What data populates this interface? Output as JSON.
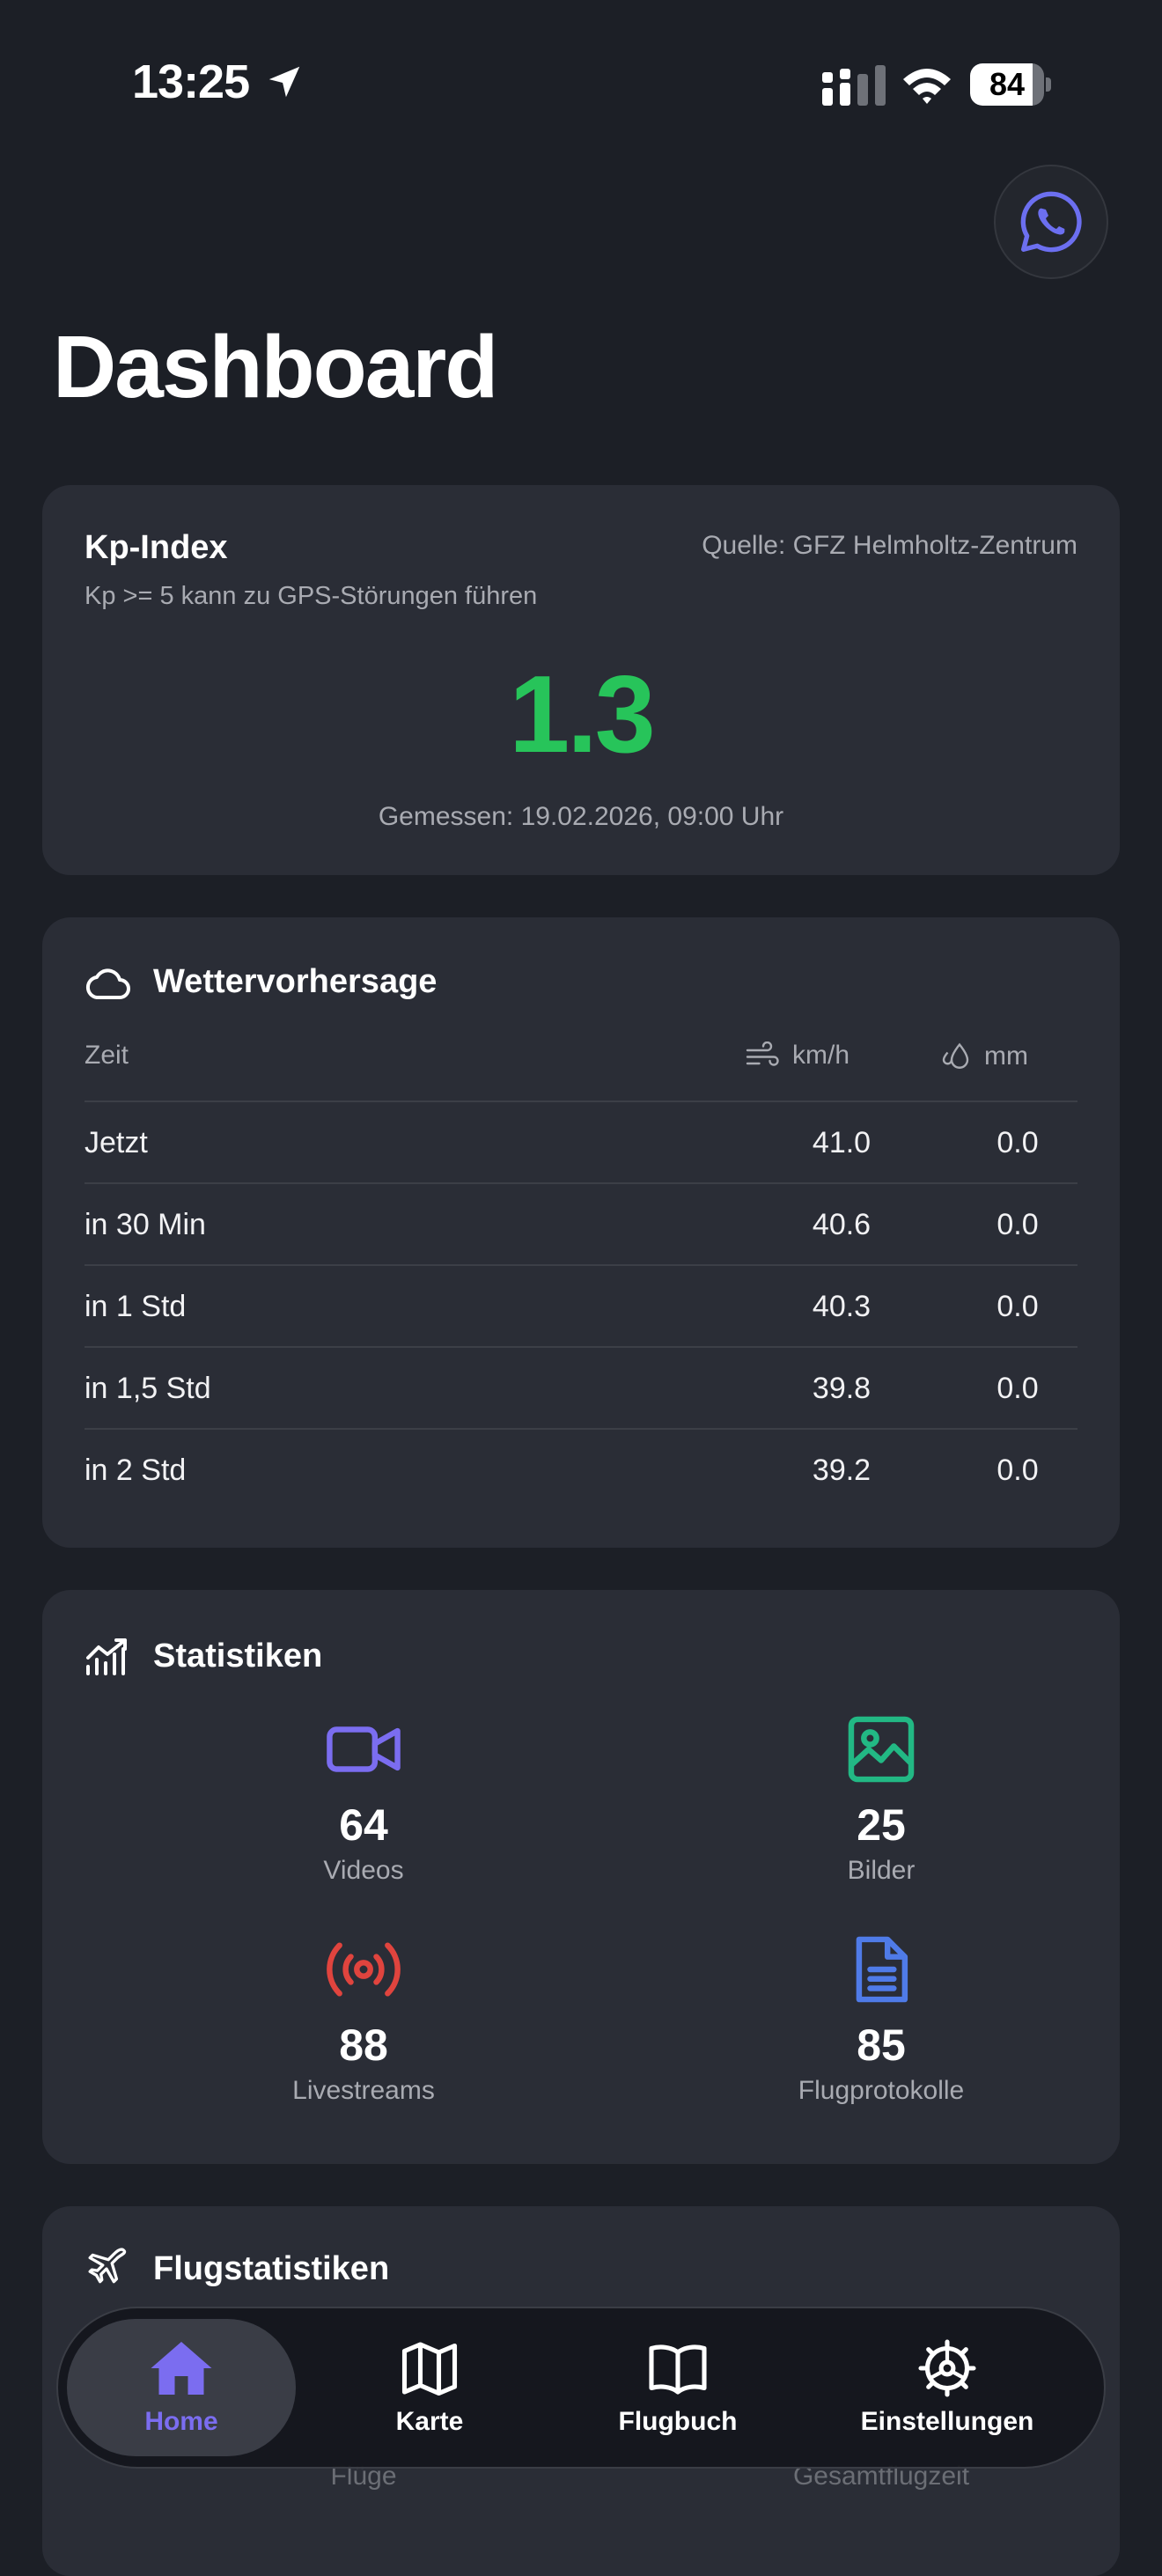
{
  "status_bar": {
    "time": "13:25",
    "battery": "84"
  },
  "page": {
    "title": "Dashboard"
  },
  "kp": {
    "title": "Kp-Index",
    "source": "Quelle: GFZ Helmholtz-Zentrum",
    "hint": "Kp >= 5 kann zu GPS-Störungen führen",
    "value": "1.3",
    "measured": "Gemessen: 19.02.2026, 09:00 Uhr",
    "value_color": "#27c45a"
  },
  "weather": {
    "title": "Wettervorhersage",
    "col_time": "Zeit",
    "col_wind": "km/h",
    "col_rain": "mm",
    "rows": [
      {
        "time": "Jetzt",
        "wind": "41.0",
        "rain": "0.0"
      },
      {
        "time": "in 30 Min",
        "wind": "40.6",
        "rain": "0.0"
      },
      {
        "time": "in 1 Std",
        "wind": "40.3",
        "rain": "0.0"
      },
      {
        "time": "in 1,5 Std",
        "wind": "39.8",
        "rain": "0.0"
      },
      {
        "time": "in 2 Std",
        "wind": "39.2",
        "rain": "0.0"
      }
    ]
  },
  "stats": {
    "title": "Statistiken",
    "items": [
      {
        "value": "64",
        "label": "Videos",
        "icon": "video-icon",
        "color": "#7b6df0"
      },
      {
        "value": "25",
        "label": "Bilder",
        "icon": "image-icon",
        "color": "#22b884"
      },
      {
        "value": "88",
        "label": "Livestreams",
        "icon": "broadcast-icon",
        "color": "#e0443e"
      },
      {
        "value": "85",
        "label": "Flugprotokolle",
        "icon": "document-icon",
        "color": "#4f7be8"
      }
    ]
  },
  "flight_stats": {
    "title": "Flugstatistiken",
    "label_flights": "Flüge",
    "label_total_time": "Gesamtflugzeit"
  },
  "tabs": [
    {
      "label": "Home",
      "icon": "home-icon",
      "active": true
    },
    {
      "label": "Karte",
      "icon": "map-icon"
    },
    {
      "label": "Flugbuch",
      "icon": "book-icon"
    },
    {
      "label": "Einstellungen",
      "icon": "settings-icon"
    }
  ],
  "colors": {
    "background": "#1c1f26",
    "card": "#2a2d36",
    "accent": "#7b6df0",
    "whatsapp_icon": "#6c6ff0"
  }
}
